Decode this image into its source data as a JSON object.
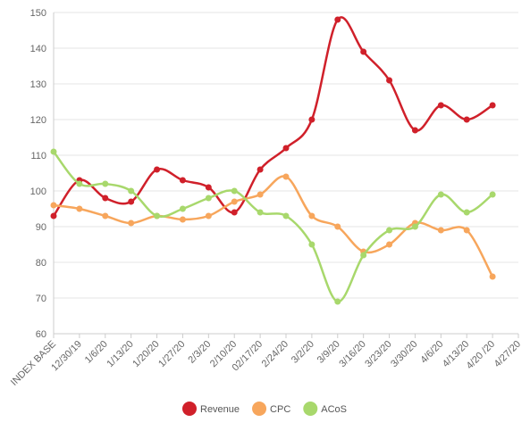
{
  "chart_data": {
    "type": "line",
    "categories": [
      "INDEX BASE",
      "12/30/19",
      "1/6/20",
      "1/13/20",
      "1/20/20",
      "1/27/20",
      "2/3/20",
      "2/10/20",
      "02/17/20",
      "2/24/20",
      "3/2/20",
      "3/9/20",
      "3/16/20",
      "3/23/20",
      "3/30/20",
      "4/6/20",
      "4/13/20",
      "4/20 /20",
      "4/27/20"
    ],
    "series": [
      {
        "name": "Revenue",
        "color": "#d0202a",
        "values": [
          93,
          103,
          98,
          97,
          106,
          103,
          101,
          94,
          106,
          112,
          120,
          148,
          139,
          131,
          117,
          124,
          120,
          124,
          null
        ]
      },
      {
        "name": "CPC",
        "color": "#f7a65c",
        "values": [
          96,
          95,
          93,
          91,
          93,
          92,
          93,
          97,
          99,
          104,
          93,
          90,
          83,
          85,
          91,
          89,
          89,
          76,
          null
        ]
      },
      {
        "name": "ACoS",
        "color": "#a8d86c",
        "values": [
          111,
          102,
          102,
          100,
          93,
          95,
          98,
          100,
          94,
          93,
          85,
          69,
          82,
          89,
          90,
          99,
          94,
          99,
          null
        ]
      }
    ],
    "ylim": [
      60,
      150
    ],
    "yticks": [
      60,
      70,
      80,
      90,
      100,
      110,
      120,
      130,
      140,
      150
    ],
    "grid": true,
    "legend": "bottom"
  }
}
